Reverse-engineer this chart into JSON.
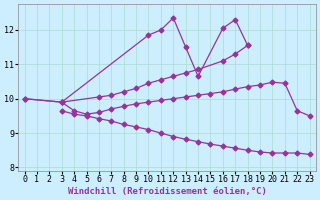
{
  "line1_x": [
    0,
    3,
    10,
    11,
    12,
    13,
    14,
    16,
    17,
    18
  ],
  "line1_y": [
    10.0,
    9.9,
    11.85,
    12.0,
    12.35,
    11.5,
    10.65,
    12.05,
    12.3,
    11.55
  ],
  "line2_x": [
    0,
    3,
    6,
    7,
    8,
    9,
    10,
    11,
    12,
    13,
    14,
    16,
    17,
    18
  ],
  "line2_y": [
    10.0,
    9.9,
    10.05,
    10.1,
    10.2,
    10.3,
    10.45,
    10.55,
    10.65,
    10.75,
    10.85,
    11.1,
    11.3,
    11.55
  ],
  "line3_x": [
    3,
    4,
    5,
    6,
    7,
    8,
    9,
    10,
    11,
    12,
    13,
    14,
    15,
    16,
    17,
    18,
    19,
    20,
    21,
    22,
    23
  ],
  "line3_y": [
    9.9,
    9.65,
    9.55,
    9.6,
    9.7,
    9.78,
    9.85,
    9.9,
    9.95,
    10.0,
    10.05,
    10.1,
    10.15,
    10.2,
    10.28,
    10.35,
    10.4,
    10.48,
    10.45,
    9.65,
    9.5
  ],
  "line4_x": [
    3,
    4,
    5,
    6,
    7,
    8,
    9,
    10,
    11,
    12,
    13,
    14,
    15,
    16,
    17,
    18,
    19,
    20,
    21,
    22,
    23
  ],
  "line4_y": [
    9.65,
    9.55,
    9.5,
    9.42,
    9.35,
    9.25,
    9.18,
    9.1,
    9.0,
    8.9,
    8.82,
    8.75,
    8.68,
    8.62,
    8.56,
    8.5,
    8.45,
    8.42,
    8.42,
    8.42,
    8.38
  ],
  "line_color": "#993399",
  "marker": "D",
  "markersize": 2.5,
  "linewidth": 0.9,
  "bg_color": "#cceeff",
  "grid_color": "#aaddcc",
  "xlabel": "Windchill (Refroidissement éolien,°C)",
  "xlim": [
    -0.5,
    23.5
  ],
  "ylim": [
    7.9,
    12.75
  ],
  "yticks": [
    8,
    9,
    10,
    11,
    12
  ],
  "xticks": [
    0,
    1,
    2,
    3,
    4,
    5,
    6,
    7,
    8,
    9,
    10,
    11,
    12,
    13,
    14,
    15,
    16,
    17,
    18,
    19,
    20,
    21,
    22,
    23
  ],
  "xlabel_fontsize": 6.5,
  "tick_fontsize": 6.0,
  "tick_font": "monospace"
}
